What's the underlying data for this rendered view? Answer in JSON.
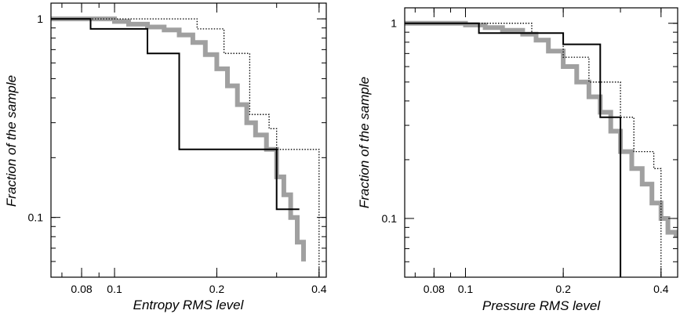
{
  "chart_data": [
    {
      "type": "line",
      "xlabel": "Entropy RMS level",
      "ylabel": "Fraction of the sample",
      "xscale": "log",
      "yscale": "log",
      "xlim": [
        0.065,
        0.42
      ],
      "ylim": [
        0.05,
        1.2
      ],
      "xticks": [
        {
          "value": 0.08,
          "label": "0.08"
        },
        {
          "value": 0.1,
          "label": "0.1"
        },
        {
          "value": 0.2,
          "label": "0.2"
        },
        {
          "value": 0.4,
          "label": "0.4"
        }
      ],
      "yticks": [
        {
          "value": 1,
          "label": "1"
        },
        {
          "value": 0.1,
          "label": "0.1"
        }
      ],
      "series": [
        {
          "style": "thick-gray",
          "color": "#a0a0a0",
          "x": [
            0.065,
            0.1,
            0.11,
            0.125,
            0.14,
            0.155,
            0.17,
            0.185,
            0.2,
            0.215,
            0.23,
            0.245,
            0.26,
            0.28,
            0.3,
            0.315,
            0.33,
            0.345,
            0.36
          ],
          "y": [
            1.0,
            0.97,
            0.94,
            0.91,
            0.88,
            0.83,
            0.76,
            0.66,
            0.56,
            0.46,
            0.37,
            0.3,
            0.26,
            0.22,
            0.16,
            0.13,
            0.1,
            0.075,
            0.06
          ]
        },
        {
          "style": "solid-black",
          "color": "#000000",
          "x": [
            0.065,
            0.085,
            0.125,
            0.155,
            0.3,
            0.35
          ],
          "y": [
            1.0,
            0.89,
            0.67,
            0.22,
            0.11,
            0.11
          ]
        },
        {
          "style": "dotted-black",
          "color": "#000000",
          "x": [
            0.065,
            0.125,
            0.175,
            0.21,
            0.25,
            0.285,
            0.3,
            0.4
          ],
          "y": [
            1.0,
            1.0,
            0.89,
            0.67,
            0.33,
            0.28,
            0.22,
            0.05
          ]
        }
      ]
    },
    {
      "type": "line",
      "xlabel": "Pressure RMS level",
      "ylabel": "Fraction of the sample",
      "xscale": "log",
      "yscale": "log",
      "xlim": [
        0.065,
        0.45
      ],
      "ylim": [
        0.05,
        1.2
      ],
      "xticks": [
        {
          "value": 0.08,
          "label": "0.08"
        },
        {
          "value": 0.1,
          "label": "0.1"
        },
        {
          "value": 0.2,
          "label": "0.2"
        },
        {
          "value": 0.4,
          "label": "0.4"
        }
      ],
      "yticks": [
        {
          "value": 1,
          "label": "1"
        },
        {
          "value": 0.1,
          "label": "0.1"
        }
      ],
      "series": [
        {
          "style": "thick-gray",
          "color": "#a0a0a0",
          "x": [
            0.065,
            0.1,
            0.115,
            0.13,
            0.15,
            0.165,
            0.18,
            0.2,
            0.22,
            0.24,
            0.26,
            0.28,
            0.3,
            0.325,
            0.35,
            0.375,
            0.4,
            0.42,
            0.445
          ],
          "y": [
            1.0,
            0.98,
            0.95,
            0.92,
            0.88,
            0.82,
            0.72,
            0.6,
            0.5,
            0.42,
            0.35,
            0.28,
            0.22,
            0.18,
            0.15,
            0.12,
            0.1,
            0.085,
            0.08
          ]
        },
        {
          "style": "solid-black",
          "color": "#000000",
          "x": [
            0.065,
            0.11,
            0.2,
            0.26,
            0.28,
            0.3
          ],
          "y": [
            1.0,
            0.89,
            0.78,
            0.33,
            0.33,
            0.05
          ]
        },
        {
          "style": "dotted-black",
          "color": "#000000",
          "x": [
            0.065,
            0.15,
            0.16,
            0.2,
            0.24,
            0.3,
            0.33,
            0.38,
            0.4
          ],
          "y": [
            1.0,
            1.0,
            0.89,
            0.67,
            0.5,
            0.33,
            0.22,
            0.18,
            0.05
          ]
        }
      ]
    }
  ]
}
